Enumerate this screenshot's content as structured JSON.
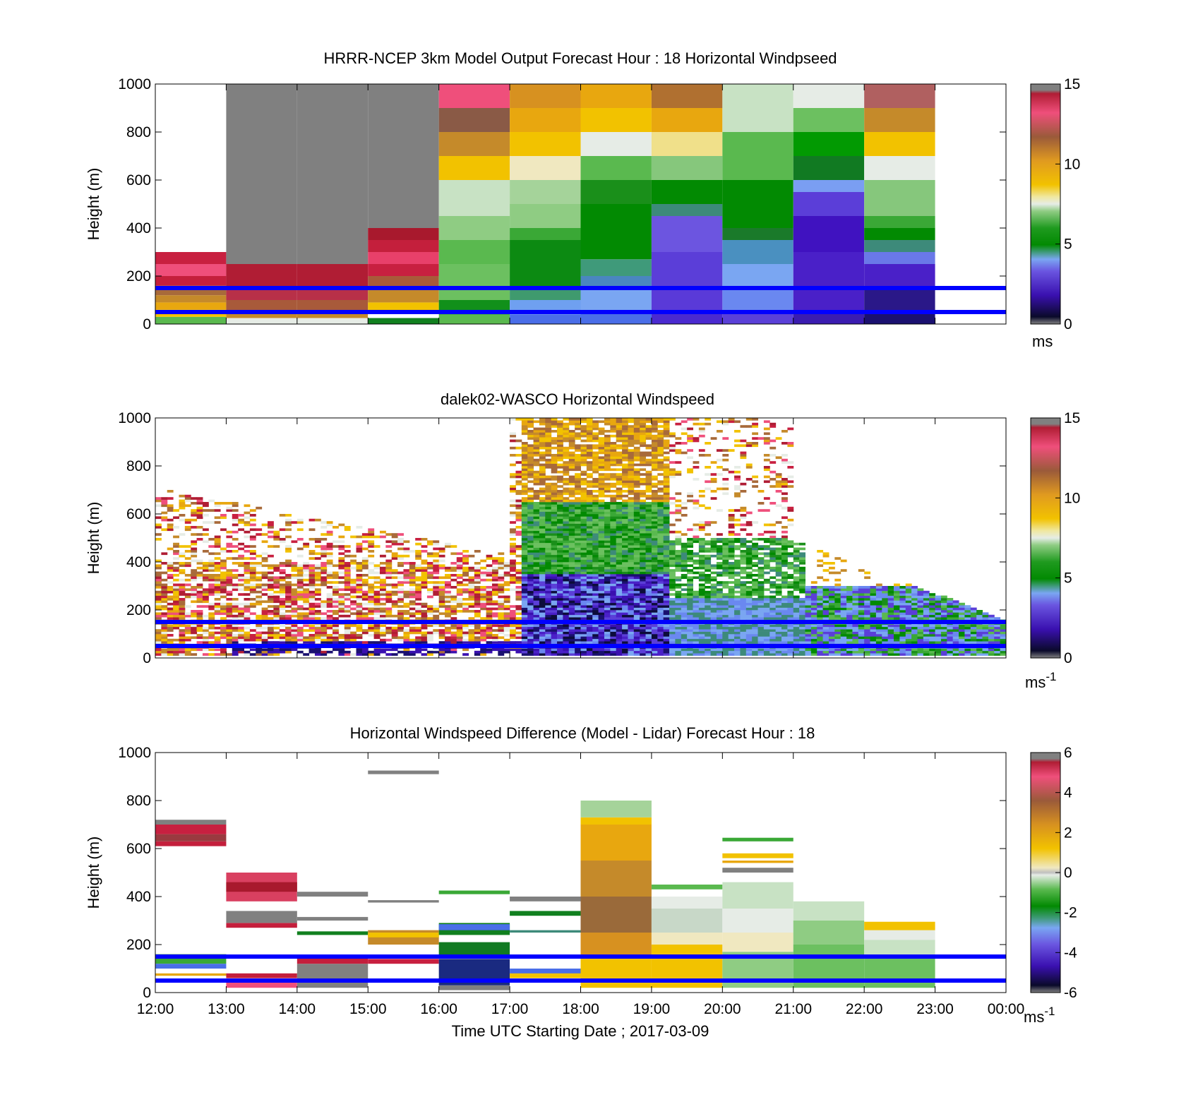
{
  "figure": {
    "xlabel": "Time UTC  Starting Date ; 2017-03-09",
    "x_ticks": [
      "12:00",
      "13:00",
      "14:00",
      "15:00",
      "16:00",
      "17:00",
      "18:00",
      "19:00",
      "20:00",
      "21:00",
      "22:00",
      "23:00",
      "00:00"
    ]
  },
  "chart_data": [
    {
      "type": "heatmap",
      "title": "HRRR-NCEP 3km Model Output   Forecast Hour : 18 Horizontal Windpseed",
      "ylabel": "Height (m)",
      "ylim": [
        0,
        1000
      ],
      "y_ticks": [
        "0",
        "200",
        "400",
        "600",
        "800",
        "1000"
      ],
      "colorbar": {
        "ticks": [
          "0",
          "5",
          "10",
          "15"
        ],
        "range": [
          0,
          15
        ],
        "unit": "ms",
        "unit_sup": ""
      },
      "reference_lines_m": [
        150,
        50
      ],
      "columns": [
        {
          "start_hour": 12,
          "bands": [
            [
              0,
              30,
              "#5ab94f"
            ],
            [
              30,
              60,
              "#f2c200"
            ],
            [
              60,
              90,
              "#e8a70f"
            ],
            [
              90,
              120,
              "#c58a2a"
            ],
            [
              120,
              160,
              "#a86a3a"
            ],
            [
              160,
              200,
              "#c41f3c"
            ],
            [
              200,
              250,
              "#ef4f7b"
            ],
            [
              250,
              300,
              "#c82040"
            ]
          ]
        },
        {
          "start_hour": 13,
          "bands": [
            [
              0,
              25,
              "#e6ece6"
            ],
            [
              25,
              55,
              "#c58a2a"
            ],
            [
              55,
              100,
              "#a85a3a"
            ],
            [
              100,
              150,
              "#b83048"
            ],
            [
              150,
              250,
              "#b01d34"
            ],
            [
              250,
              1000,
              "#808080"
            ]
          ]
        },
        {
          "start_hour": 14,
          "bands": [
            [
              0,
              25,
              "#e6ece6"
            ],
            [
              25,
              55,
              "#c58a2a"
            ],
            [
              55,
              100,
              "#a85a3a"
            ],
            [
              100,
              150,
              "#b83048"
            ],
            [
              150,
              250,
              "#b01d34"
            ],
            [
              250,
              1000,
              "#808080"
            ]
          ]
        },
        {
          "start_hour": 15,
          "bands": [
            [
              0,
              25,
              "#11801f"
            ],
            [
              25,
              55,
              "#ffffff"
            ],
            [
              55,
              90,
              "#f2c200"
            ],
            [
              90,
              150,
              "#c58a2a"
            ],
            [
              150,
              200,
              "#a85a3a"
            ],
            [
              200,
              250,
              "#c82040"
            ],
            [
              250,
              300,
              "#e8406a"
            ],
            [
              300,
              350,
              "#c41f3c"
            ],
            [
              350,
              400,
              "#a8192d"
            ],
            [
              400,
              1000,
              "#808080"
            ]
          ]
        },
        {
          "start_hour": 16,
          "bands": [
            [
              0,
              40,
              "#5ab94f"
            ],
            [
              40,
              100,
              "#11901a"
            ],
            [
              100,
              250,
              "#6cc060"
            ],
            [
              250,
              350,
              "#5ab94f"
            ],
            [
              350,
              450,
              "#8fcc83"
            ],
            [
              450,
              600,
              "#c8e2c4"
            ],
            [
              600,
              700,
              "#f2c200"
            ],
            [
              700,
              800,
              "#c58a2a"
            ],
            [
              800,
              900,
              "#8a5a46"
            ],
            [
              900,
              1000,
              "#ef4f7b"
            ]
          ]
        },
        {
          "start_hour": 17,
          "bands": [
            [
              0,
              40,
              "#4a6ee8"
            ],
            [
              40,
              100,
              "#6fa0f0"
            ],
            [
              100,
              150,
              "#3f9a6e"
            ],
            [
              150,
              350,
              "#0c8a12"
            ],
            [
              350,
              400,
              "#3aa836"
            ],
            [
              400,
              500,
              "#8fcc83"
            ],
            [
              500,
              600,
              "#a5d39a"
            ],
            [
              600,
              700,
              "#f0e8c0"
            ],
            [
              700,
              800,
              "#f2c200"
            ],
            [
              800,
              900,
              "#e8a70f"
            ],
            [
              900,
              1000,
              "#d79120"
            ]
          ]
        },
        {
          "start_hour": 18,
          "bands": [
            [
              0,
              50,
              "#4a6ee8"
            ],
            [
              50,
              150,
              "#7aa6f2"
            ],
            [
              150,
              200,
              "#4a86c0"
            ],
            [
              200,
              270,
              "#3f9a7a"
            ],
            [
              270,
              500,
              "#028a02"
            ],
            [
              500,
              600,
              "#1a8f1a"
            ],
            [
              600,
              700,
              "#5ab94f"
            ],
            [
              700,
              800,
              "#e6ece6"
            ],
            [
              800,
              900,
              "#f2c200"
            ],
            [
              900,
              1000,
              "#e8a70f"
            ]
          ]
        },
        {
          "start_hour": 19,
          "bands": [
            [
              0,
              50,
              "#4a2ad0"
            ],
            [
              50,
              150,
              "#5a3ad8"
            ],
            [
              150,
              300,
              "#5b3ed8"
            ],
            [
              300,
              450,
              "#6c55e0"
            ],
            [
              450,
              500,
              "#3d8a7a"
            ],
            [
              500,
              600,
              "#028a02"
            ],
            [
              600,
              700,
              "#86c77c"
            ],
            [
              700,
              800,
              "#f0e08a"
            ],
            [
              800,
              900,
              "#e8a70f"
            ],
            [
              900,
              1000,
              "#b07030"
            ]
          ]
        },
        {
          "start_hour": 20,
          "bands": [
            [
              0,
              50,
              "#5a40d8"
            ],
            [
              50,
              150,
              "#6a88f0"
            ],
            [
              150,
              250,
              "#7aa6f2"
            ],
            [
              250,
              350,
              "#4a90c0"
            ],
            [
              350,
              400,
              "#1a7a2a"
            ],
            [
              400,
              600,
              "#028a02"
            ],
            [
              600,
              800,
              "#5ab94f"
            ],
            [
              800,
              1000,
              "#c8e2c4"
            ]
          ]
        },
        {
          "start_hour": 21,
          "bands": [
            [
              0,
              50,
              "#3a1cb0"
            ],
            [
              50,
              300,
              "#4a20c8"
            ],
            [
              300,
              450,
              "#4012c0"
            ],
            [
              450,
              550,
              "#5b3ed8"
            ],
            [
              550,
              600,
              "#7a9ef2"
            ],
            [
              600,
              700,
              "#117a22"
            ],
            [
              700,
              800,
              "#029a02"
            ],
            [
              800,
              900,
              "#6cc060"
            ],
            [
              900,
              1000,
              "#e6ece6"
            ]
          ]
        },
        {
          "start_hour": 22,
          "bands": [
            [
              0,
              50,
              "#1a1070"
            ],
            [
              50,
              150,
              "#2a1888"
            ],
            [
              150,
              250,
              "#4a20c8"
            ],
            [
              250,
              300,
              "#6a78e8"
            ],
            [
              300,
              350,
              "#3d8a7a"
            ],
            [
              350,
              400,
              "#028a02"
            ],
            [
              400,
              450,
              "#3aa836"
            ],
            [
              450,
              600,
              "#86c77c"
            ],
            [
              600,
              700,
              "#e6ece6"
            ],
            [
              700,
              800,
              "#f2c200"
            ],
            [
              800,
              900,
              "#c58a2a"
            ],
            [
              900,
              1000,
              "#b06060"
            ]
          ]
        }
      ]
    },
    {
      "type": "heatmap",
      "title": "dalek02-WASCO  Horizontal Windspeed",
      "ylabel": "Height (m)",
      "ylim": [
        0,
        1000
      ],
      "y_ticks": [
        "0",
        "200",
        "400",
        "600",
        "800",
        "1000"
      ],
      "colorbar": {
        "ticks": [
          "0",
          "5",
          "10",
          "15"
        ],
        "range": [
          0,
          15
        ],
        "unit": "ms",
        "unit_sup": "-1"
      },
      "reference_lines_m": [
        150,
        50
      ]
    },
    {
      "type": "heatmap",
      "title": "Horizontal Windspeed Difference (Model - Lidar) Forecast Hour : 18",
      "ylabel": "Height (m)",
      "ylim": [
        0,
        1000
      ],
      "y_ticks": [
        "0",
        "200",
        "400",
        "600",
        "800",
        "1000"
      ],
      "colorbar": {
        "ticks": [
          "-6",
          "-4",
          "-2",
          "0",
          "2",
          "4",
          "6"
        ],
        "range": [
          -6,
          6
        ],
        "unit": "ms",
        "unit_sup": "-1"
      },
      "reference_lines_m": [
        150,
        50
      ],
      "columns": [
        {
          "start_hour": 12,
          "bands": [
            [
              610,
              630,
              "#c41f3c"
            ],
            [
              630,
              660,
              "#9a3a40"
            ],
            [
              660,
              700,
              "#c82040"
            ],
            [
              700,
              720,
              "#808080"
            ],
            [
              120,
              160,
              "#3aa836"
            ],
            [
              100,
              120,
              "#4a6ee8"
            ],
            [
              70,
              80,
              "#e8a70f"
            ]
          ]
        },
        {
          "start_hour": 13,
          "bands": [
            [
              270,
              290,
              "#c41f3c"
            ],
            [
              290,
              340,
              "#808080"
            ],
            [
              380,
              500,
              "#d94060"
            ],
            [
              420,
              460,
              "#a8192d"
            ],
            [
              60,
              80,
              "#c41f3c"
            ],
            [
              20,
              50,
              "#ef4f7b"
            ]
          ]
        },
        {
          "start_hour": 14,
          "bands": [
            [
              400,
              420,
              "#808080"
            ],
            [
              300,
              315,
              "#808080"
            ],
            [
              240,
              255,
              "#11801f"
            ],
            [
              20,
              120,
              "#808080"
            ],
            [
              120,
              150,
              "#c41f3c"
            ]
          ]
        },
        {
          "start_hour": 15,
          "bands": [
            [
              910,
              925,
              "#808080"
            ],
            [
              375,
              385,
              "#808080"
            ],
            [
              200,
              260,
              "#c58a2a"
            ],
            [
              230,
              250,
              "#f2c200"
            ],
            [
              120,
              140,
              "#c82040"
            ]
          ]
        },
        {
          "start_hour": 16,
          "bands": [
            [
              410,
              425,
              "#3aa836"
            ],
            [
              240,
              290,
              "#11801f"
            ],
            [
              260,
              285,
              "#4a6ee8"
            ],
            [
              150,
              210,
              "#117a22"
            ],
            [
              30,
              140,
              "#1a2a80"
            ],
            [
              10,
              30,
              "#808080"
            ]
          ]
        },
        {
          "start_hour": 17,
          "bands": [
            [
              380,
              400,
              "#808080"
            ],
            [
              320,
              340,
              "#11801f"
            ],
            [
              250,
              260,
              "#3d8a7a"
            ],
            [
              70,
              100,
              "#4a6ee8"
            ],
            [
              60,
              80,
              "#f2c200"
            ]
          ]
        },
        {
          "start_hour": 18,
          "bands": [
            [
              20,
              150,
              "#f2c200"
            ],
            [
              150,
              250,
              "#d79120"
            ],
            [
              250,
              400,
              "#9a6a3a"
            ],
            [
              400,
              550,
              "#c58a2a"
            ],
            [
              550,
              700,
              "#e8a70f"
            ],
            [
              700,
              730,
              "#f2c200"
            ],
            [
              730,
              800,
              "#a5d39a"
            ]
          ]
        },
        {
          "start_hour": 19,
          "bands": [
            [
              20,
              200,
              "#f2c200"
            ],
            [
              200,
              250,
              "#f0e8c0"
            ],
            [
              250,
              350,
              "#c8d8c8"
            ],
            [
              350,
              400,
              "#e6ece6"
            ],
            [
              430,
              450,
              "#5ab94f"
            ]
          ]
        },
        {
          "start_hour": 20,
          "bands": [
            [
              20,
              170,
              "#8fcc83"
            ],
            [
              170,
              250,
              "#f0e8c0"
            ],
            [
              250,
              350,
              "#e6ece6"
            ],
            [
              350,
              460,
              "#c8e2c4"
            ],
            [
              500,
              520,
              "#808080"
            ],
            [
              540,
              550,
              "#e8a70f"
            ],
            [
              560,
              580,
              "#f2c200"
            ],
            [
              630,
              645,
              "#3aa836"
            ]
          ]
        },
        {
          "start_hour": 21,
          "bands": [
            [
              20,
              200,
              "#6cc060"
            ],
            [
              200,
              300,
              "#8fcc83"
            ],
            [
              300,
              380,
              "#c8e2c4"
            ]
          ]
        },
        {
          "start_hour": 22,
          "bands": [
            [
              20,
              150,
              "#6cc060"
            ],
            [
              150,
              220,
              "#c8e2c4"
            ],
            [
              220,
              280,
              "#e6ece6"
            ],
            [
              260,
              295,
              "#f2c200"
            ]
          ]
        }
      ]
    }
  ]
}
